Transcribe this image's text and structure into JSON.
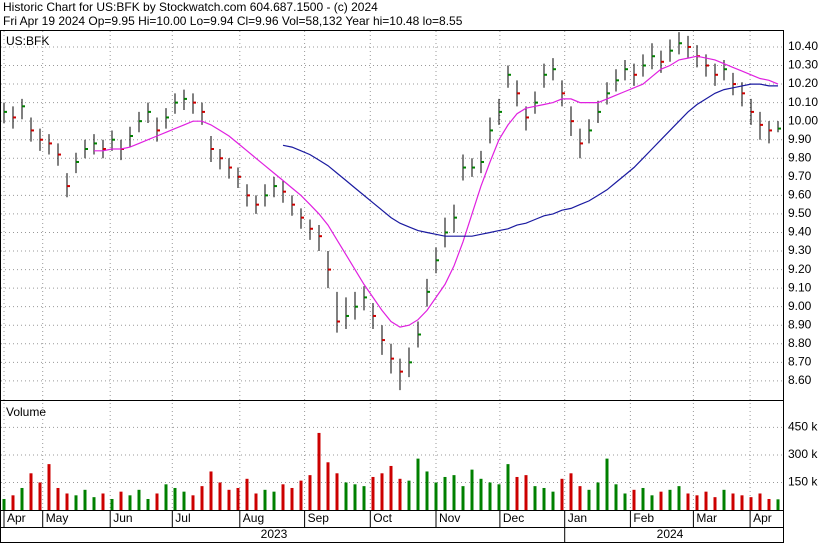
{
  "chart_data": {
    "type": "ohlc",
    "title": "Historic Chart for US:BFK by Stockwatch.com 604.687.1500 - (c) 2024",
    "subtitle": "Fri Apr 19 2024  Op=9.95  Hi=10.00  Lo=9.94  Cl=9.96  Vol=58,132  Year hi=10.48  lo=8.55",
    "symbol": "US:BFK",
    "volume_title": "Volume",
    "xlim": [
      0,
      86
    ],
    "ylim": [
      8.497,
      10.486
    ],
    "grid": true,
    "yticks": [
      {
        "value": 8.6,
        "label": "8.60"
      },
      {
        "value": 8.7,
        "label": "8.70"
      },
      {
        "value": 8.8,
        "label": "8.80"
      },
      {
        "value": 8.9,
        "label": "8.90"
      },
      {
        "value": 9.0,
        "label": "9.00"
      },
      {
        "value": 9.1,
        "label": "9.10"
      },
      {
        "value": 9.2,
        "label": "9.20"
      },
      {
        "value": 9.3,
        "label": "9.30"
      },
      {
        "value": 9.4,
        "label": "9.40"
      },
      {
        "value": 9.5,
        "label": "9.50"
      },
      {
        "value": 9.6,
        "label": "9.60"
      },
      {
        "value": 9.7,
        "label": "9.70"
      },
      {
        "value": 9.8,
        "label": "9.80"
      },
      {
        "value": 9.9,
        "label": "9.90"
      },
      {
        "value": 10.0,
        "label": "10.00"
      },
      {
        "value": 10.1,
        "label": "10.10"
      },
      {
        "value": 10.2,
        "label": "10.20"
      },
      {
        "value": 10.3,
        "label": "10.30"
      },
      {
        "value": 10.4,
        "label": "10.40"
      }
    ],
    "xticks": [
      {
        "value": 0,
        "label": "Apr"
      },
      {
        "value": 4.3,
        "label": "May"
      },
      {
        "value": 11.8,
        "label": "Jun"
      },
      {
        "value": 18.7,
        "label": "Jul"
      },
      {
        "value": 26.2,
        "label": "Aug"
      },
      {
        "value": 33.4,
        "label": "Sep"
      },
      {
        "value": 40.7,
        "label": "Oct"
      },
      {
        "value": 48,
        "label": "Nov"
      },
      {
        "value": 55.1,
        "label": "Dec"
      },
      {
        "value": 62.3,
        "label": "Jan"
      },
      {
        "value": 69.6,
        "label": "Feb"
      },
      {
        "value": 76.6,
        "label": "Mar"
      },
      {
        "value": 82.9,
        "label": "Apr"
      }
    ],
    "years": [
      {
        "value": 30,
        "label": "2023"
      },
      {
        "value": 74,
        "label": "2024"
      }
    ],
    "up_color": "#008000",
    "down_color": "#cc0000",
    "high": [
      10.1,
      10.08,
      10.12,
      10.02,
      9.96,
      9.93,
      9.88,
      9.72,
      9.83,
      9.9,
      9.93,
      9.9,
      9.95,
      9.9,
      9.97,
      10.05,
      10.1,
      10.02,
      10.07,
      10.15,
      10.17,
      10.15,
      10.1,
      9.92,
      9.85,
      9.8,
      9.75,
      9.66,
      9.6,
      9.66,
      9.7,
      9.68,
      9.6,
      9.53,
      9.47,
      9.44,
      9.3,
      9.08,
      9.05,
      9.08,
      9.11,
      9.02,
      8.9,
      8.8,
      8.72,
      8.78,
      8.92,
      9.15,
      9.32,
      9.48,
      9.55,
      9.82,
      9.8,
      9.84,
      10.02,
      10.12,
      10.3,
      10.22,
      10.08,
      10.16,
      10.31,
      10.34,
      10.22,
      10.08,
      9.96,
      10.01,
      10.11,
      10.21,
      10.28,
      10.33,
      10.31,
      10.36,
      10.42,
      10.38,
      10.44,
      10.48,
      10.46,
      10.41,
      10.36,
      10.31,
      10.33,
      10.26,
      10.21,
      10.12,
      10.05,
      10.0,
      10.0
    ],
    "low": [
      9.99,
      9.96,
      10.01,
      9.89,
      9.84,
      9.82,
      9.76,
      9.59,
      9.72,
      9.8,
      9.82,
      9.8,
      9.84,
      9.79,
      9.86,
      9.94,
      9.99,
      9.89,
      9.96,
      10.04,
      10.06,
      10.04,
      9.98,
      9.78,
      9.74,
      9.69,
      9.64,
      9.54,
      9.5,
      9.54,
      9.59,
      9.56,
      9.49,
      9.42,
      9.36,
      9.3,
      9.1,
      8.86,
      8.88,
      8.93,
      8.98,
      8.88,
      8.74,
      8.64,
      8.55,
      8.62,
      8.78,
      9.0,
      9.18,
      9.32,
      9.4,
      9.68,
      9.7,
      9.72,
      9.88,
      9.98,
      10.18,
      10.08,
      9.95,
      10.04,
      10.18,
      10.22,
      10.08,
      9.92,
      9.8,
      9.88,
      9.99,
      10.09,
      10.16,
      10.22,
      10.19,
      10.24,
      10.28,
      10.26,
      10.32,
      10.36,
      10.34,
      10.29,
      10.24,
      10.19,
      10.22,
      10.14,
      10.08,
      9.98,
      9.9,
      9.88,
      9.94
    ],
    "close": [
      10.05,
      10.02,
      10.08,
      9.95,
      9.9,
      9.88,
      9.82,
      9.65,
      9.78,
      9.85,
      9.88,
      9.85,
      9.9,
      9.85,
      9.92,
      10.0,
      10.05,
      9.95,
      10.02,
      10.1,
      10.12,
      10.1,
      10.05,
      9.85,
      9.8,
      9.75,
      9.7,
      9.6,
      9.55,
      9.6,
      9.65,
      9.62,
      9.55,
      9.48,
      9.42,
      9.38,
      9.2,
      8.92,
      8.95,
      9.0,
      9.05,
      8.95,
      8.82,
      8.72,
      8.65,
      8.7,
      8.85,
      9.08,
      9.25,
      9.4,
      9.48,
      9.75,
      9.75,
      9.78,
      9.95,
      10.05,
      10.25,
      10.15,
      10.02,
      10.1,
      10.25,
      10.28,
      10.15,
      10.0,
      9.88,
      9.95,
      10.05,
      10.15,
      10.22,
      10.28,
      10.25,
      10.3,
      10.35,
      10.32,
      10.38,
      10.42,
      10.4,
      10.35,
      10.3,
      10.25,
      10.28,
      10.2,
      10.15,
      10.05,
      9.98,
      9.95,
      9.96
    ],
    "series": [
      {
        "color": "#e020e0",
        "values": [
          null,
          null,
          null,
          null,
          null,
          null,
          null,
          null,
          null,
          null,
          9.84,
          9.84,
          9.85,
          9.85,
          9.86,
          9.88,
          9.9,
          9.92,
          9.94,
          9.96,
          9.98,
          10.0,
          10.0,
          9.98,
          9.95,
          9.92,
          9.88,
          9.84,
          9.8,
          9.76,
          9.72,
          9.68,
          9.64,
          9.6,
          9.55,
          9.5,
          9.44,
          9.36,
          9.28,
          9.2,
          9.12,
          9.05,
          8.98,
          8.92,
          8.89,
          8.9,
          8.93,
          8.98,
          9.05,
          9.12,
          9.22,
          9.35,
          9.5,
          9.65,
          9.78,
          9.9,
          9.98,
          10.04,
          10.07,
          10.08,
          10.09,
          10.1,
          10.12,
          10.12,
          10.1,
          10.1,
          10.1,
          10.12,
          10.14,
          10.16,
          10.18,
          10.2,
          10.24,
          10.28,
          10.3,
          10.33,
          10.34,
          10.35,
          10.34,
          10.33,
          10.31,
          10.29,
          10.27,
          10.25,
          10.23,
          10.22,
          10.2
        ]
      },
      {
        "color": "#1a1aa0",
        "values": [
          null,
          null,
          null,
          null,
          null,
          null,
          null,
          null,
          null,
          null,
          null,
          null,
          null,
          null,
          null,
          null,
          null,
          null,
          null,
          null,
          null,
          null,
          null,
          null,
          null,
          null,
          null,
          null,
          null,
          null,
          null,
          9.87,
          9.86,
          9.84,
          9.82,
          9.79,
          9.76,
          9.72,
          9.68,
          9.64,
          9.6,
          9.56,
          9.52,
          9.48,
          9.45,
          9.43,
          9.41,
          9.4,
          9.39,
          9.38,
          9.38,
          9.38,
          9.38,
          9.39,
          9.4,
          9.41,
          9.42,
          9.44,
          9.45,
          9.47,
          9.49,
          9.5,
          9.52,
          9.53,
          9.55,
          9.57,
          9.6,
          9.63,
          9.67,
          9.71,
          9.75,
          9.8,
          9.85,
          9.9,
          9.95,
          10.0,
          10.05,
          10.09,
          10.12,
          10.15,
          10.17,
          10.18,
          10.19,
          10.2,
          10.2,
          10.19,
          10.19
        ]
      }
    ],
    "volume": {
      "ylim": [
        0,
        594000
      ],
      "yticks": [
        {
          "value": 150000,
          "label": "150 k"
        },
        {
          "value": 300000,
          "label": "300 k"
        },
        {
          "value": 450000,
          "label": "450 k"
        }
      ],
      "values": [
        60000,
        80000,
        120000,
        200000,
        150000,
        250000,
        120000,
        90000,
        80000,
        110000,
        70000,
        90000,
        60000,
        100000,
        80000,
        110000,
        60000,
        90000,
        140000,
        120000,
        100000,
        80000,
        130000,
        210000,
        150000,
        110000,
        120000,
        170000,
        90000,
        110000,
        100000,
        140000,
        120000,
        160000,
        190000,
        420000,
        260000,
        200000,
        150000,
        140000,
        130000,
        180000,
        200000,
        240000,
        170000,
        160000,
        280000,
        210000,
        150000,
        180000,
        190000,
        130000,
        220000,
        170000,
        150000,
        140000,
        250000,
        180000,
        190000,
        130000,
        120000,
        100000,
        170000,
        200000,
        130000,
        110000,
        150000,
        280000,
        140000,
        90000,
        110000,
        120000,
        80000,
        100000,
        110000,
        130000,
        90000,
        80000,
        100000,
        70000,
        110000,
        90000,
        80000,
        70000,
        90000,
        60000,
        58132
      ]
    }
  }
}
